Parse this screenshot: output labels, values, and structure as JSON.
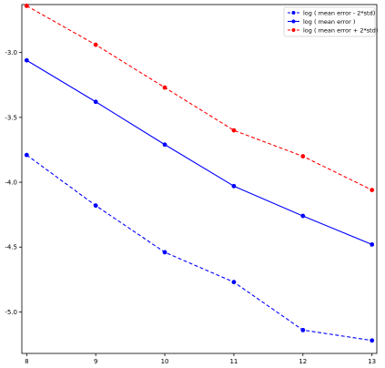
{
  "chart_data": {
    "type": "line",
    "title": "",
    "xlabel": "",
    "ylabel": "",
    "x": [
      8,
      9,
      10,
      11,
      12,
      13
    ],
    "xlim": [
      7.93,
      13.07
    ],
    "ylim": [
      -5.32,
      -2.63
    ],
    "xticks": [
      8,
      9,
      10,
      11,
      12,
      13
    ],
    "yticks": [
      -5.0,
      -4.5,
      -4.0,
      -3.5,
      -3.0
    ],
    "ytick_labels": [
      "-5.0",
      "-4.5",
      "-4.0",
      "-3.5",
      "-3.0"
    ],
    "xtick_labels": [
      "8",
      "9",
      "10",
      "11",
      "12",
      "13"
    ],
    "grid": false,
    "legend_position": "top-right",
    "series": [
      {
        "name": "log ( mean error - 2*std)",
        "color": "#0000ff",
        "linestyle": "dashed",
        "marker": "circle",
        "values": [
          -3.79,
          -4.18,
          -4.54,
          -4.77,
          -5.14,
          -5.22
        ]
      },
      {
        "name": "log ( mean error )",
        "color": "#0000ff",
        "linestyle": "solid",
        "marker": "circle",
        "values": [
          -3.06,
          -3.38,
          -3.71,
          -4.03,
          -4.26,
          -4.48
        ]
      },
      {
        "name": "log ( mean error + 2*std)",
        "color": "#ff0000",
        "linestyle": "dashed",
        "marker": "circle",
        "values": [
          -2.64,
          -2.94,
          -3.27,
          -3.6,
          -3.8,
          -4.06
        ]
      }
    ]
  }
}
